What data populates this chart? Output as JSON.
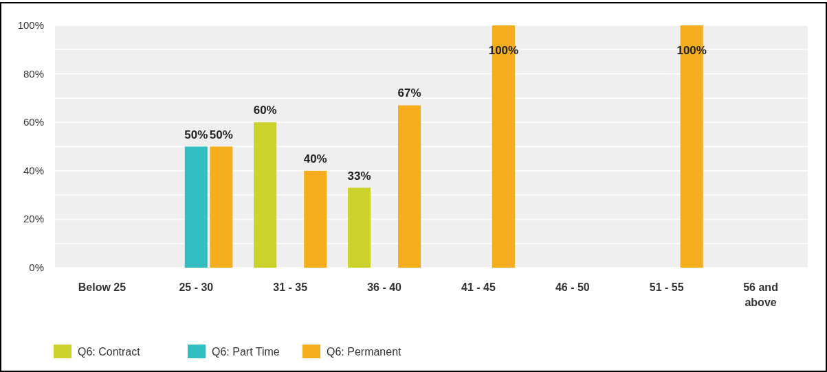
{
  "chart_data": {
    "type": "bar",
    "categories": [
      "Below 25",
      "25 - 30",
      "31 - 35",
      "36 - 40",
      "41 - 45",
      "46 - 50",
      "51 - 55",
      "56 and above"
    ],
    "series": [
      {
        "name": "Q6: Contract",
        "color": "#cbd22c",
        "values": [
          null,
          null,
          60,
          33,
          null,
          null,
          null,
          null
        ],
        "value_labels": [
          null,
          null,
          "60%",
          "33%",
          null,
          null,
          null,
          null
        ]
      },
      {
        "name": "Q6: Part Time",
        "color": "#33bfc1",
        "values": [
          null,
          50,
          null,
          null,
          null,
          null,
          null,
          null
        ],
        "value_labels": [
          null,
          "50%",
          null,
          null,
          null,
          null,
          null,
          null
        ]
      },
      {
        "name": "Q6: Permanent",
        "color": "#f5ad1d",
        "values": [
          null,
          50,
          40,
          67,
          100,
          null,
          100,
          null
        ],
        "value_labels": [
          null,
          "50%",
          "40%",
          "67%",
          "100%",
          null,
          "100%",
          null
        ]
      }
    ],
    "ylim": [
      0,
      100
    ],
    "yticks": [
      {
        "value": 0,
        "label": "0%"
      },
      {
        "value": 10,
        "label": null
      },
      {
        "value": 20,
        "label": "20%"
      },
      {
        "value": 30,
        "label": null
      },
      {
        "value": 40,
        "label": "40%"
      },
      {
        "value": 50,
        "label": null
      },
      {
        "value": 60,
        "label": "60%"
      },
      {
        "value": 70,
        "label": null
      },
      {
        "value": 80,
        "label": "80%"
      },
      {
        "value": 90,
        "label": null
      },
      {
        "value": 100,
        "label": "100%"
      }
    ],
    "grid": "y",
    "legend": "bottom"
  }
}
